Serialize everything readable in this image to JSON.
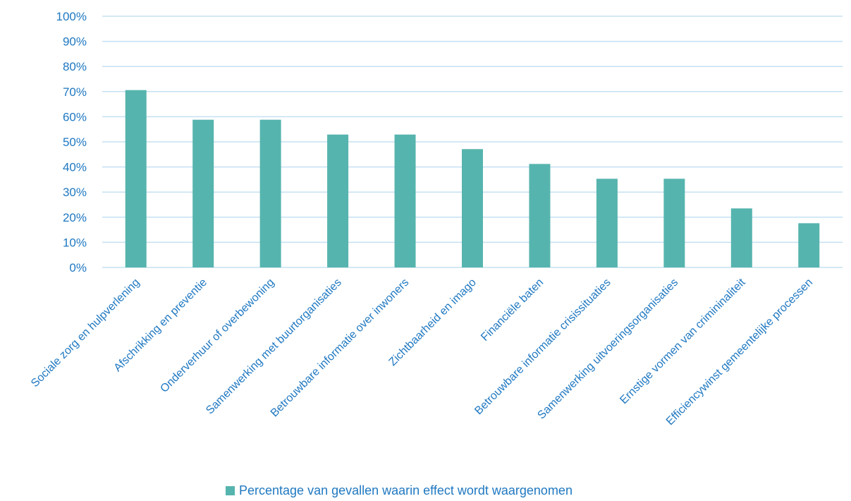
{
  "chart_data": {
    "type": "bar",
    "categories": [
      "Sociale zorg en hulpverlening",
      "Afschrikking en preventie",
      "Onderverhuur of overbewoning",
      "Samenwerking met buurtorganisaties",
      "Betrouwbare informatie over inwoners",
      "Zichtbaarheid en imago",
      "Financiële baten",
      "Betrouwbare informatie crisissituaties",
      "Samenwerking uitvoeringsorganisaties",
      "Ernstige vormen van crimininaliteit",
      "Efficiencywinst gemeentelijke processen"
    ],
    "series": [
      {
        "name": "Percentage van gevallen waarin effect wordt waargenomen",
        "values": [
          70.6,
          58.8,
          58.8,
          52.9,
          52.9,
          47.1,
          41.2,
          35.3,
          35.3,
          23.5,
          17.6
        ]
      }
    ],
    "y_ticks": [
      "0%",
      "10%",
      "20%",
      "30%",
      "40%",
      "50%",
      "60%",
      "70%",
      "80%",
      "90%",
      "100%"
    ],
    "ylim": [
      0,
      100
    ],
    "grid": true,
    "legend_position": "bottom",
    "colors": {
      "bar": "#56b4ae",
      "text": "#1f78c1",
      "grid": "#c5e0f2"
    }
  }
}
